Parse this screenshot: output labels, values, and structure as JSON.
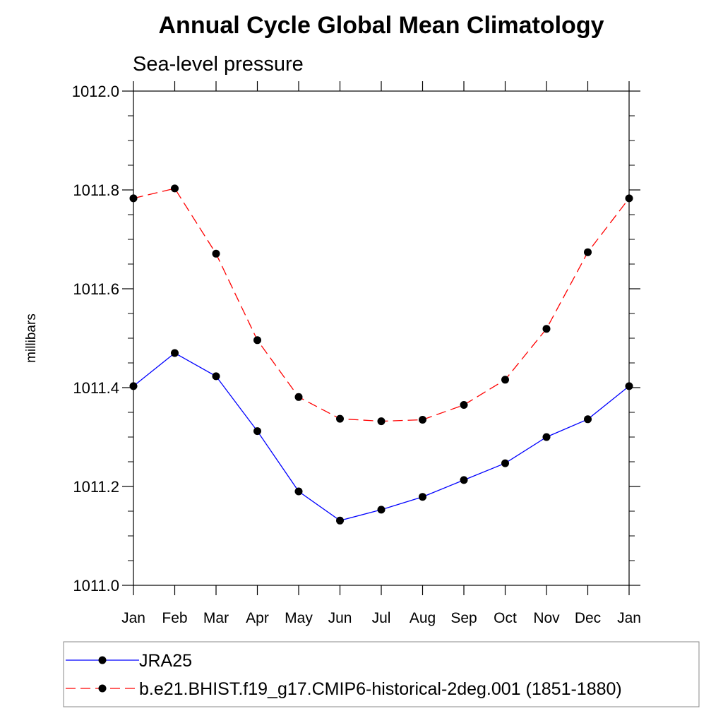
{
  "chart_data": {
    "type": "line",
    "title": "Annual Cycle Global Mean Climatology",
    "subtitle": "Sea-level pressure",
    "xlabel": "",
    "ylabel": "millibars",
    "ylim": [
      1011.0,
      1012.0
    ],
    "yticks": [
      "1011.0",
      "1011.2",
      "1011.4",
      "1011.6",
      "1011.8",
      "1012.0"
    ],
    "categories": [
      "Jan",
      "Feb",
      "Mar",
      "Apr",
      "May",
      "Jun",
      "Jul",
      "Aug",
      "Sep",
      "Oct",
      "Nov",
      "Dec",
      "Jan"
    ],
    "series": [
      {
        "name": "JRA25",
        "color": "#0000ff",
        "dashed": false,
        "values": [
          1011.403,
          1011.47,
          1011.423,
          1011.312,
          1011.19,
          1011.131,
          1011.153,
          1011.179,
          1011.213,
          1011.247,
          1011.3,
          1011.336,
          1011.403
        ]
      },
      {
        "name": "b.e21.BHIST.f19_g17.CMIP6-historical-2deg.001 (1851-1880)",
        "color": "#ff0000",
        "dashed": true,
        "values": [
          1011.783,
          1011.803,
          1011.671,
          1011.496,
          1011.381,
          1011.337,
          1011.332,
          1011.335,
          1011.365,
          1011.416,
          1011.519,
          1011.674,
          1011.783
        ]
      }
    ],
    "marker_color": "#000000",
    "legend_position": "bottom"
  }
}
